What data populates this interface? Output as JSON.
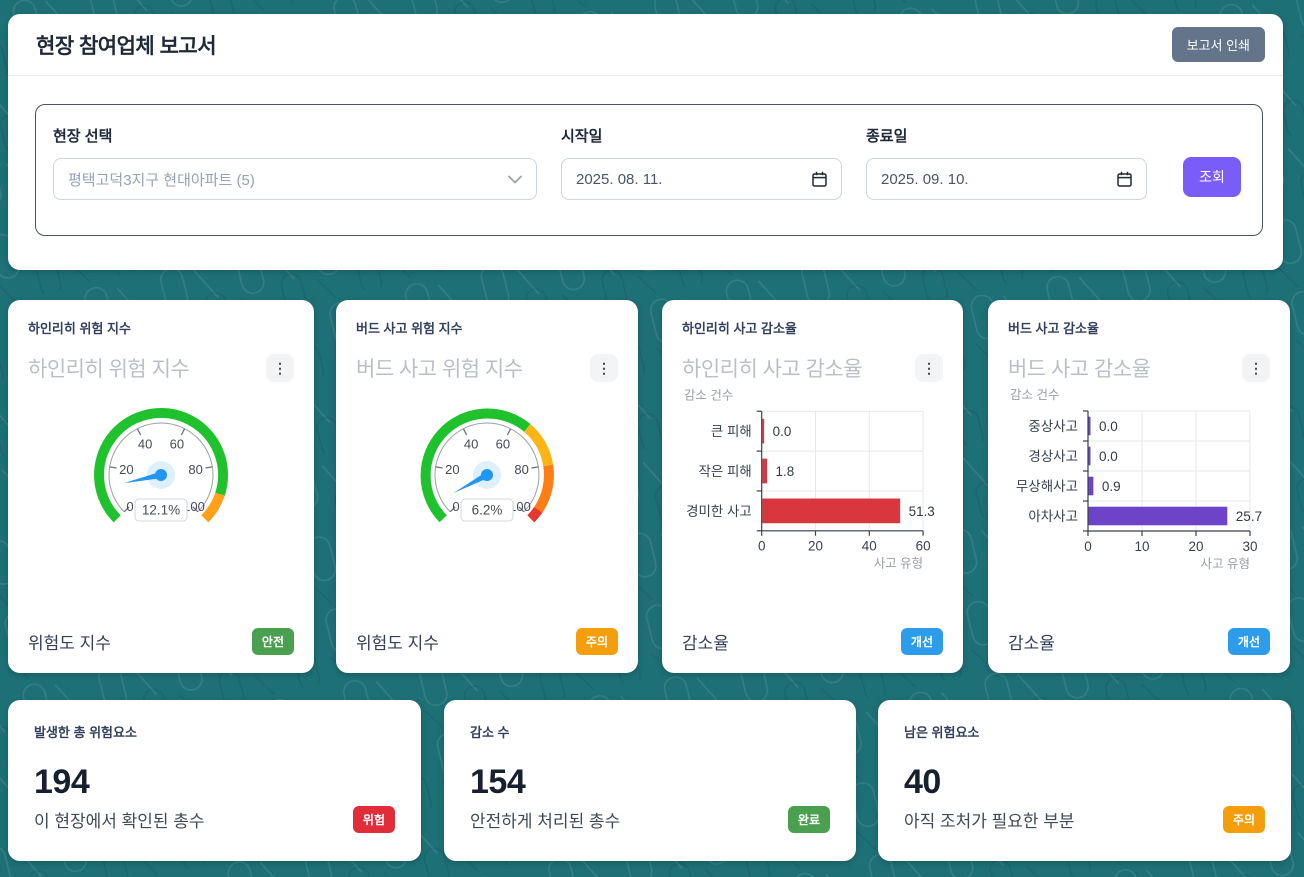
{
  "header": {
    "title": "현장 참여업체 보고서",
    "print_button": "보고서 인쇄"
  },
  "filters": {
    "site": {
      "label": "현장 선택",
      "value": "평택고덕3지구 현대아파트 (5)"
    },
    "start": {
      "label": "시작일",
      "value": "2025. 08. 11."
    },
    "end": {
      "label": "종료일",
      "value": "2025. 09. 10."
    },
    "search_button": "조회"
  },
  "chart_data": [
    {
      "type": "gauge",
      "card_label": "하인리히 위험 지수",
      "title": "하인리히 위험 지수",
      "value": 12.1,
      "value_text": "12.1%",
      "min": 0,
      "max": 100,
      "ticks": [
        0,
        20,
        40,
        60,
        80,
        100
      ],
      "segments": [
        {
          "to": 90,
          "color": "#1fc22c"
        },
        {
          "to": 100,
          "color": "#ffa018"
        }
      ],
      "needle_color": "#2196f3",
      "footer": "위험도 지수",
      "badge": {
        "label": "안전",
        "color": "#4ba04f"
      }
    },
    {
      "type": "gauge",
      "card_label": "버드 사고 위험 지수",
      "title": "버드 사고 위험 지수",
      "value": 6.2,
      "value_text": "6.2%",
      "min": 0,
      "max": 100,
      "ticks": [
        0,
        20,
        40,
        60,
        80,
        100
      ],
      "segments": [
        {
          "to": 65,
          "color": "#1fc22c"
        },
        {
          "to": 80,
          "color": "#fdb515"
        },
        {
          "to": 96,
          "color": "#fd7e14"
        },
        {
          "to": 100,
          "color": "#e8372f"
        }
      ],
      "needle_color": "#2196f3",
      "footer": "위험도 지수",
      "badge": {
        "label": "주의",
        "color": "#f59e0b"
      }
    },
    {
      "type": "bar",
      "card_label": "하인리히 사고 감소율",
      "title": "하인리히 사고 감소율",
      "ylabel": "감소 건수",
      "xlabel": "사고 유형",
      "categories": [
        "큰 피해",
        "작은 피해",
        "경미한 사고"
      ],
      "values": [
        0.0,
        1.8,
        51.3
      ],
      "value_labels": [
        "0.0",
        "1.8",
        "51.3"
      ],
      "xticks": [
        0,
        20,
        40,
        60
      ],
      "xlim": [
        0,
        60
      ],
      "bar_color": "#d9363e",
      "footer": "감소율",
      "badge": {
        "label": "개선",
        "color": "#2d9ceb"
      }
    },
    {
      "type": "bar",
      "card_label": "버드 사고 감소율",
      "title": "버드 사고 감소율",
      "ylabel": "감소 건수",
      "xlabel": "사고 유형",
      "categories": [
        "중상사고",
        "경상사고",
        "무상해사고",
        "아차사고"
      ],
      "values": [
        0.0,
        0.0,
        0.9,
        25.7
      ],
      "value_labels": [
        "0.0",
        "0.0",
        "0.9",
        "25.7"
      ],
      "xticks": [
        0,
        10,
        20,
        30
      ],
      "xlim": [
        0,
        30
      ],
      "bar_color": "#6d44c8",
      "footer": "감소율",
      "badge": {
        "label": "개선",
        "color": "#2d9ceb"
      }
    }
  ],
  "stats": [
    {
      "label": "발생한 총 위험요소",
      "value": "194",
      "desc": "이 현장에서 확인된 총수",
      "badge": {
        "label": "위험",
        "color": "#e12d39"
      }
    },
    {
      "label": "감소 수",
      "value": "154",
      "desc": "안전하게 처리된 총수",
      "badge": {
        "label": "완료",
        "color": "#4ba04f"
      }
    },
    {
      "label": "남은 위험요소",
      "value": "40",
      "desc": "아직 조처가 필요한 부분",
      "badge": {
        "label": "주의",
        "color": "#f59e0b"
      }
    }
  ],
  "icons": {
    "menu": "⋮",
    "chevron_down": "▾"
  }
}
